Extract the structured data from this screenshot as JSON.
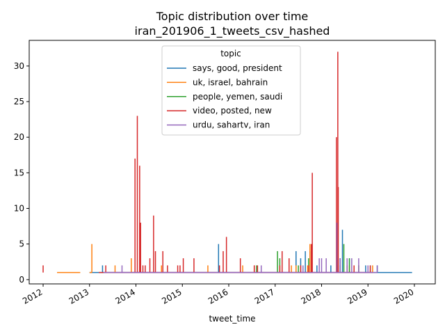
{
  "chart_data": {
    "type": "line",
    "title": "Topic distribution over time",
    "subtitle": "iran_201906_1_tweets_csv_hashed",
    "xlabel": "tweet_time",
    "ylabel": "",
    "xlim": [
      2011.7,
      2020.45
    ],
    "ylim": [
      -0.6,
      33.6
    ],
    "x_ticks": [
      2012,
      2013,
      2014,
      2015,
      2016,
      2017,
      2018,
      2019,
      2020
    ],
    "x_tick_labels": [
      "2012",
      "2013",
      "2014",
      "2015",
      "2016",
      "2017",
      "2018",
      "2019",
      "2020"
    ],
    "y_ticks": [
      0,
      5,
      10,
      15,
      20,
      25,
      30
    ],
    "y_tick_labels": [
      "0",
      "5",
      "10",
      "15",
      "20",
      "25",
      "30"
    ],
    "grid": false,
    "legend": {
      "title": "topic",
      "position": "upper-center"
    },
    "series": [
      {
        "name": "says, good, president",
        "color": "#1f77b4",
        "baseline": [
          [
            2013.0,
            2019.95
          ]
        ],
        "spikes": [
          [
            2013.28,
            2
          ],
          [
            2013.33,
            1
          ],
          [
            2015.78,
            5
          ],
          [
            2017.45,
            4
          ],
          [
            2017.55,
            3
          ],
          [
            2017.65,
            4
          ],
          [
            2017.75,
            4
          ],
          [
            2017.9,
            2
          ],
          [
            2018.2,
            2
          ],
          [
            2018.4,
            3
          ],
          [
            2018.45,
            7
          ],
          [
            2018.6,
            3
          ],
          [
            2018.95,
            2
          ],
          [
            2019.05,
            2
          ],
          [
            2019.2,
            2
          ]
        ]
      },
      {
        "name": "uk, israel, bahrain",
        "color": "#ff7f0e",
        "baseline": [
          [
            2012.3,
            2012.8
          ],
          [
            2013.0,
            2013.05
          ]
        ],
        "spikes": [
          [
            2013.05,
            5
          ],
          [
            2013.55,
            2
          ],
          [
            2013.9,
            3
          ],
          [
            2014.55,
            2
          ],
          [
            2015.55,
            2
          ],
          [
            2016.3,
            2
          ],
          [
            2016.55,
            2
          ],
          [
            2017.35,
            2
          ],
          [
            2017.45,
            2
          ],
          [
            2017.7,
            2
          ],
          [
            2017.75,
            5
          ],
          [
            2018.35,
            2
          ],
          [
            2018.6,
            2
          ],
          [
            2018.8,
            2
          ],
          [
            2019.1,
            2
          ]
        ]
      },
      {
        "name": "people, yemen, saudi",
        "color": "#2ca02c",
        "baseline": [],
        "spikes": [
          [
            2016.6,
            2
          ],
          [
            2017.05,
            4
          ],
          [
            2017.1,
            3
          ],
          [
            2017.5,
            2
          ],
          [
            2017.72,
            3
          ],
          [
            2018.4,
            2
          ],
          [
            2018.48,
            5
          ],
          [
            2018.6,
            3
          ],
          [
            2018.8,
            2
          ]
        ]
      },
      {
        "name": "video, posted, new",
        "color": "#d62728",
        "baseline": [
          [
            2013.2,
            2019.1
          ]
        ],
        "spikes": [
          [
            2012.0,
            2
          ],
          [
            2013.35,
            2
          ],
          [
            2013.98,
            17
          ],
          [
            2014.03,
            23
          ],
          [
            2014.08,
            16
          ],
          [
            2014.1,
            8
          ],
          [
            2014.15,
            2
          ],
          [
            2014.2,
            2
          ],
          [
            2014.3,
            3
          ],
          [
            2014.38,
            9
          ],
          [
            2014.42,
            4
          ],
          [
            2014.58,
            4
          ],
          [
            2014.68,
            2
          ],
          [
            2014.9,
            2
          ],
          [
            2014.95,
            2
          ],
          [
            2015.02,
            3
          ],
          [
            2015.25,
            3
          ],
          [
            2015.8,
            2
          ],
          [
            2015.88,
            4
          ],
          [
            2015.95,
            6
          ],
          [
            2016.25,
            3
          ],
          [
            2016.55,
            2
          ],
          [
            2016.62,
            2
          ],
          [
            2017.1,
            2
          ],
          [
            2017.15,
            4
          ],
          [
            2017.3,
            3
          ],
          [
            2017.55,
            2
          ],
          [
            2017.72,
            2
          ],
          [
            2017.78,
            5
          ],
          [
            2017.8,
            15
          ],
          [
            2018.32,
            20
          ],
          [
            2018.35,
            32
          ],
          [
            2018.36,
            13
          ],
          [
            2018.55,
            2
          ],
          [
            2018.7,
            2
          ],
          [
            2019.05,
            2
          ]
        ]
      },
      {
        "name": "urdu, sahartv, iran",
        "color": "#9467bd",
        "baseline": [
          [
            2013.3,
            2019.2
          ]
        ],
        "spikes": [
          [
            2013.7,
            2
          ],
          [
            2016.7,
            2
          ],
          [
            2017.6,
            2
          ],
          [
            2017.95,
            3
          ],
          [
            2018.0,
            3
          ],
          [
            2018.1,
            3
          ],
          [
            2018.33,
            8
          ],
          [
            2018.4,
            3
          ],
          [
            2018.55,
            3
          ],
          [
            2018.65,
            3
          ],
          [
            2018.8,
            3
          ],
          [
            2019.0,
            2
          ],
          [
            2019.2,
            2
          ]
        ]
      }
    ]
  }
}
